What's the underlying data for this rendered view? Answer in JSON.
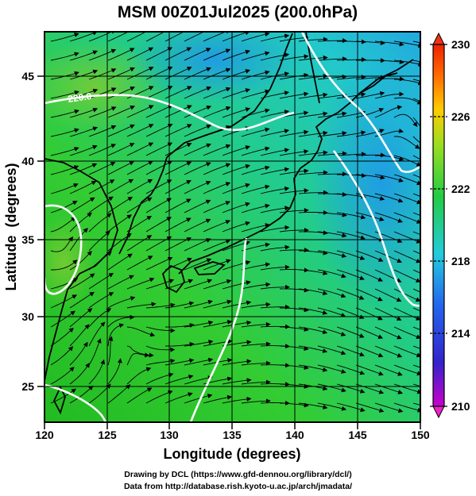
{
  "title": "MSM 00Z01Jul2025 (200.0hPa)",
  "axes": {
    "xlabel": "Longitude (degrees)",
    "ylabel": "Latitude  (degrees)",
    "x_ticks": [
      "120",
      "125",
      "130",
      "135",
      "140",
      "145",
      "150"
    ],
    "y_ticks": [
      "25",
      "30",
      "35",
      "40",
      "45"
    ],
    "xlim": [
      120,
      150
    ],
    "ylim": [
      22.5,
      47.6
    ]
  },
  "colorbar": {
    "ticks": [
      "230",
      "226",
      "222",
      "218",
      "214",
      "210"
    ],
    "range": [
      210,
      230
    ]
  },
  "contour_label": "220.0",
  "credits": {
    "line1": "Drawing by DCL (https://www.gfd-dennou.org/library/dcl/)",
    "line2": "Data from http://database.rish.kyoto-u.ac.jp/arch/jmadata/"
  }
}
